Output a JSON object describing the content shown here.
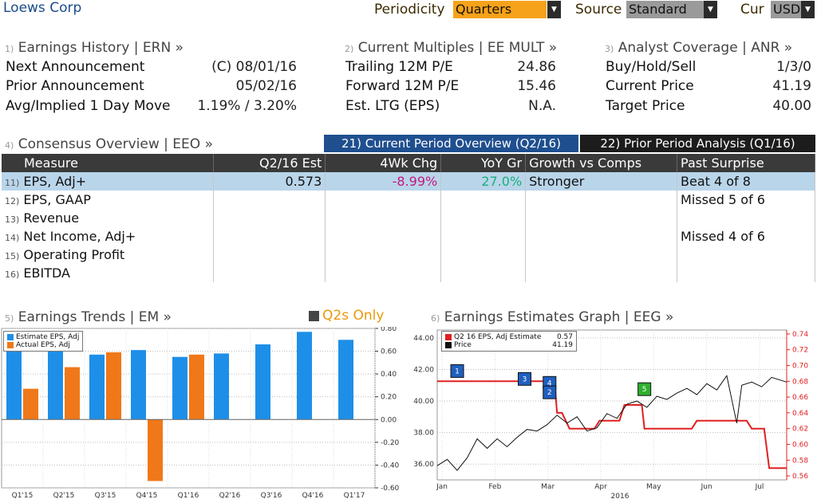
{
  "header": {
    "company": "Loews Corp",
    "periodicity_label": "Periodicity",
    "periodicity_value": "Quarters",
    "source_label": "Source",
    "source_value": "Standard",
    "cur_label": "Cur",
    "cur_value": "USD"
  },
  "earnings_history": {
    "num": "1)",
    "title": "Earnings History | ERN »",
    "rows": [
      {
        "label": "Next Announcement",
        "value": "(C)  08/01/16"
      },
      {
        "label": "Prior Announcement",
        "value": "05/02/16"
      },
      {
        "label": "Avg/Implied 1 Day Move",
        "value": "1.19% / 3.20%"
      }
    ]
  },
  "current_multiples": {
    "num": "2)",
    "title": "Current Multiples | EE MULT »",
    "rows": [
      {
        "label": "Trailing 12M P/E",
        "value": "24.86"
      },
      {
        "label": "Forward 12M P/E",
        "value": "15.46"
      },
      {
        "label": "Est. LTG (EPS)",
        "value": "N.A."
      }
    ]
  },
  "analyst_coverage": {
    "num": "3)",
    "title": "Analyst Coverage | ANR »",
    "rows": [
      {
        "label": "Buy/Hold/Sell",
        "value": "1/3/0"
      },
      {
        "label": "Current Price",
        "value": "41.19"
      },
      {
        "label": "Target Price",
        "value": "40.00"
      }
    ]
  },
  "consensus": {
    "num": "4)",
    "title": "Consensus Overview | EEO »",
    "tab_current": "21) Current Period Overview (Q2/16)",
    "tab_prior": "22) Prior Period Analysis (Q1/16)",
    "columns": [
      "Measure",
      "Q2/16 Est",
      "4Wk Chg",
      "YoY Gr",
      "Growth vs Comps",
      "Past Surprise"
    ],
    "rows": [
      {
        "num": "11)",
        "measure": "EPS, Adj+",
        "est": "0.573",
        "chg": "-8.99%",
        "yoy": "27.0%",
        "comps": "Stronger",
        "surprise": "Beat 4 of 8"
      },
      {
        "num": "12)",
        "measure": "EPS, GAAP",
        "est": "",
        "chg": "",
        "yoy": "",
        "comps": "",
        "surprise": "Missed 5 of 6"
      },
      {
        "num": "13)",
        "measure": "Revenue",
        "est": "",
        "chg": "",
        "yoy": "",
        "comps": "",
        "surprise": ""
      },
      {
        "num": "14)",
        "measure": "Net Income, Adj+",
        "est": "",
        "chg": "",
        "yoy": "",
        "comps": "",
        "surprise": "Missed 4 of 6"
      },
      {
        "num": "15)",
        "measure": "Operating Profit",
        "est": "",
        "chg": "",
        "yoy": "",
        "comps": "",
        "surprise": ""
      },
      {
        "num": "16)",
        "measure": "EBITDA",
        "est": "",
        "chg": "",
        "yoy": "",
        "comps": "",
        "surprise": ""
      }
    ]
  },
  "trends": {
    "num": "5)",
    "title": "Earnings Trends | EM »",
    "q2s_label": "Q2s Only"
  },
  "graph": {
    "num": "6)",
    "title": "Earnings Estimates Graph | EEG »"
  },
  "chart_data": [
    {
      "type": "bar",
      "categories": [
        "Q1'15",
        "Q2'15",
        "Q3'15",
        "Q4'15",
        "Q1'16",
        "Q2'16",
        "Q3'16",
        "Q4'16",
        "Q1'17"
      ],
      "series": [
        {
          "name": "Estimate EPS, Adj",
          "color": "#1e8fe8",
          "values": [
            0.62,
            0.64,
            0.57,
            0.61,
            0.55,
            0.58,
            0.66,
            0.77,
            0.7
          ]
        },
        {
          "name": "Actual EPS, Adj",
          "color": "#f07818",
          "values": [
            0.27,
            0.46,
            0.59,
            -0.54,
            0.57,
            null,
            null,
            null,
            null
          ]
        }
      ],
      "ylim": [
        -0.6,
        0.8
      ],
      "yticks": [
        "0.80",
        "0.60",
        "0.40",
        "0.20",
        "0.00",
        "-0.20",
        "-0.40",
        "-0.60"
      ],
      "legend": "top-left",
      "grid": true
    },
    {
      "type": "line",
      "series": [
        {
          "name": "Q2 16 EPS, Adj Estimate",
          "legend_value": "0.57",
          "color": "#e02020",
          "axis": "right",
          "points": [
            [
              0,
              0.68
            ],
            [
              2,
              0.68
            ],
            [
              4.7,
              0.68
            ],
            [
              4.8,
              0.64
            ],
            [
              5.0,
              0.64
            ],
            [
              5.3,
              0.62
            ],
            [
              5.6,
              0.62
            ],
            [
              6.3,
              0.62
            ],
            [
              6.5,
              0.63
            ],
            [
              7.3,
              0.63
            ],
            [
              7.5,
              0.65
            ],
            [
              8.0,
              0.65
            ],
            [
              8.2,
              0.65
            ],
            [
              8.3,
              0.62
            ],
            [
              10.2,
              0.62
            ],
            [
              10.4,
              0.63
            ],
            [
              12.4,
              0.63
            ],
            [
              12.6,
              0.62
            ],
            [
              13.1,
              0.62
            ],
            [
              13.3,
              0.57
            ],
            [
              14.0,
              0.57
            ]
          ]
        },
        {
          "name": "Price",
          "legend_value": "41.19",
          "color": "#111111",
          "axis": "left",
          "points": [
            [
              0,
              35.9
            ],
            [
              0.4,
              36.3
            ],
            [
              0.8,
              35.6
            ],
            [
              1.2,
              36.4
            ],
            [
              1.6,
              37.6
            ],
            [
              2.0,
              37.0
            ],
            [
              2.4,
              37.6
            ],
            [
              2.8,
              37.1
            ],
            [
              3.2,
              37.7
            ],
            [
              3.6,
              38.2
            ],
            [
              4.0,
              38.1
            ],
            [
              4.4,
              38.5
            ],
            [
              4.8,
              39.1
            ],
            [
              5.2,
              38.6
            ],
            [
              5.6,
              39.0
            ],
            [
              6.0,
              38.1
            ],
            [
              6.4,
              38.3
            ],
            [
              6.8,
              39.2
            ],
            [
              7.2,
              38.9
            ],
            [
              7.6,
              39.8
            ],
            [
              8.0,
              40.0
            ],
            [
              8.4,
              39.6
            ],
            [
              8.8,
              40.3
            ],
            [
              9.2,
              40.1
            ],
            [
              9.6,
              40.5
            ],
            [
              10.0,
              40.8
            ],
            [
              10.4,
              40.4
            ],
            [
              10.8,
              41.1
            ],
            [
              11.2,
              40.7
            ],
            [
              11.6,
              41.6
            ],
            [
              12.0,
              38.6
            ],
            [
              12.2,
              41.0
            ],
            [
              12.6,
              41.2
            ],
            [
              13.0,
              40.9
            ],
            [
              13.4,
              41.5
            ],
            [
              14.0,
              41.2
            ]
          ]
        }
      ],
      "x_labels": [
        "Jan",
        "Feb",
        "Mar",
        "Apr",
        "May",
        "Jun",
        "Jul"
      ],
      "x_year": "2016",
      "y_left_ticks": [
        "44.00",
        "42.00",
        "40.00",
        "38.00",
        "36.00"
      ],
      "y_left_range": [
        35.0,
        44.5
      ],
      "y_right_ticks": [
        "0.74",
        "0.72",
        "0.70",
        "0.68",
        "0.66",
        "0.64",
        "0.62",
        "0.60",
        "0.58",
        "0.56"
      ],
      "y_right_range": [
        0.555,
        0.745
      ],
      "event_markers": [
        {
          "label": "1",
          "color": "#1f5fbf"
        },
        {
          "label": "3",
          "color": "#1f5fbf"
        },
        {
          "label": "4",
          "color": "#1f5fbf"
        },
        {
          "label": "2",
          "color": "#1f5fbf"
        },
        {
          "label": "5",
          "color": "#2fb02f"
        }
      ],
      "legend": "top-left",
      "grid": true
    }
  ]
}
